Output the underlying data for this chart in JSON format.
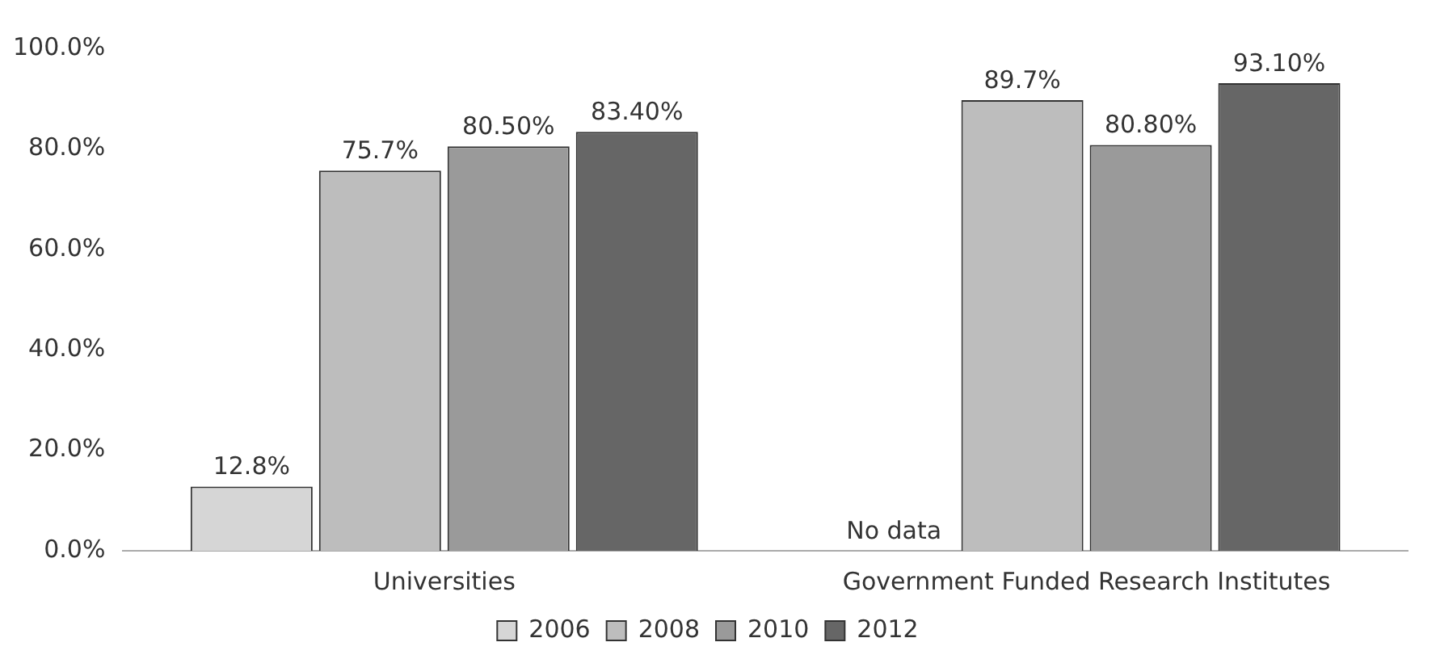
{
  "chart_data": {
    "type": "bar",
    "categories": [
      "Universities",
      "Government Funded Research Institutes"
    ],
    "series": [
      {
        "name": "2006",
        "color": "#d6d6d6",
        "values": [
          12.8,
          null
        ],
        "value_labels": [
          "12.8%",
          "No data"
        ]
      },
      {
        "name": "2008",
        "color": "#bdbdbd",
        "values": [
          75.7,
          89.7
        ],
        "value_labels": [
          "75.7%",
          "89.7%"
        ]
      },
      {
        "name": "2010",
        "color": "#9a9a9a",
        "values": [
          80.5,
          80.8
        ],
        "value_labels": [
          "80.50%",
          "80.80%"
        ]
      },
      {
        "name": "2012",
        "color": "#666666",
        "values": [
          83.4,
          93.1
        ],
        "value_labels": [
          "83.40%",
          "93.10%"
        ]
      }
    ],
    "ylim": [
      0,
      100
    ],
    "yticks": [
      {
        "value": 0,
        "label": "0.0%"
      },
      {
        "value": 20,
        "label": "20.0%"
      },
      {
        "value": 40,
        "label": "40.0%"
      },
      {
        "value": 60,
        "label": "60.0%"
      },
      {
        "value": 80,
        "label": "80.0%"
      },
      {
        "value": 100,
        "label": "100.0%"
      }
    ],
    "grid": false,
    "legend": "bottom"
  }
}
